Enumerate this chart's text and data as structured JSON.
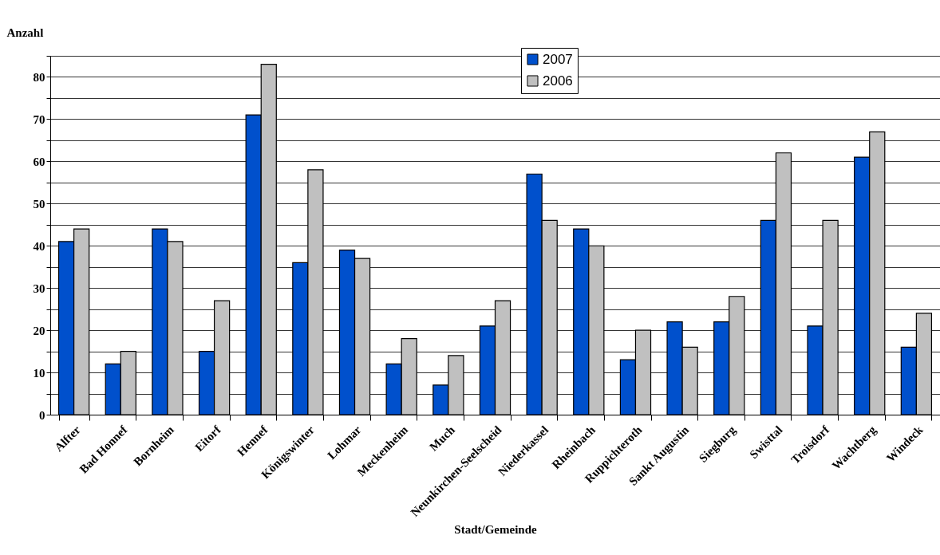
{
  "chart_data": {
    "type": "bar",
    "xlabel": "Stadt/Gemeinde",
    "ylabel": "Anzahl",
    "categories": [
      "Alfter",
      "Bad Honnef",
      "Bornheim",
      "Eitorf",
      "Hennef",
      "Königswinter",
      "Lohmar",
      "Meckenheim",
      "Much",
      "Neunkirchen-Seelscheid",
      "Niederkassel",
      "Rheinbach",
      "Ruppichteroth",
      "Sankt Augustin",
      "Siegburg",
      "Swisttal",
      "Troisdorf",
      "Wachtberg",
      "Windeck"
    ],
    "series": [
      {
        "name": "2007",
        "color": "#0050cc",
        "values": [
          41,
          12,
          44,
          15,
          71,
          36,
          39,
          12,
          7,
          21,
          57,
          44,
          13,
          22,
          22,
          46,
          21,
          61,
          16
        ]
      },
      {
        "name": "2006",
        "color": "#c0c0c0",
        "values": [
          44,
          15,
          41,
          27,
          83,
          58,
          37,
          18,
          14,
          27,
          46,
          40,
          20,
          16,
          28,
          62,
          46,
          67,
          24
        ]
      }
    ],
    "ylim": [
      0,
      85
    ],
    "yticks": [
      0,
      {
        "value": 5,
        "label": null
      },
      10,
      {
        "value": 15,
        "label": null
      },
      20,
      {
        "value": 25,
        "label": null
      },
      30,
      {
        "value": 35,
        "label": null
      },
      40,
      {
        "value": 45,
        "label": null
      },
      50,
      {
        "value": 55,
        "label": null
      },
      60,
      {
        "value": 65,
        "label": null
      },
      70,
      {
        "value": 75,
        "label": null
      },
      80,
      {
        "value": 85,
        "label": null
      }
    ],
    "grid": "y",
    "legend": "top"
  }
}
